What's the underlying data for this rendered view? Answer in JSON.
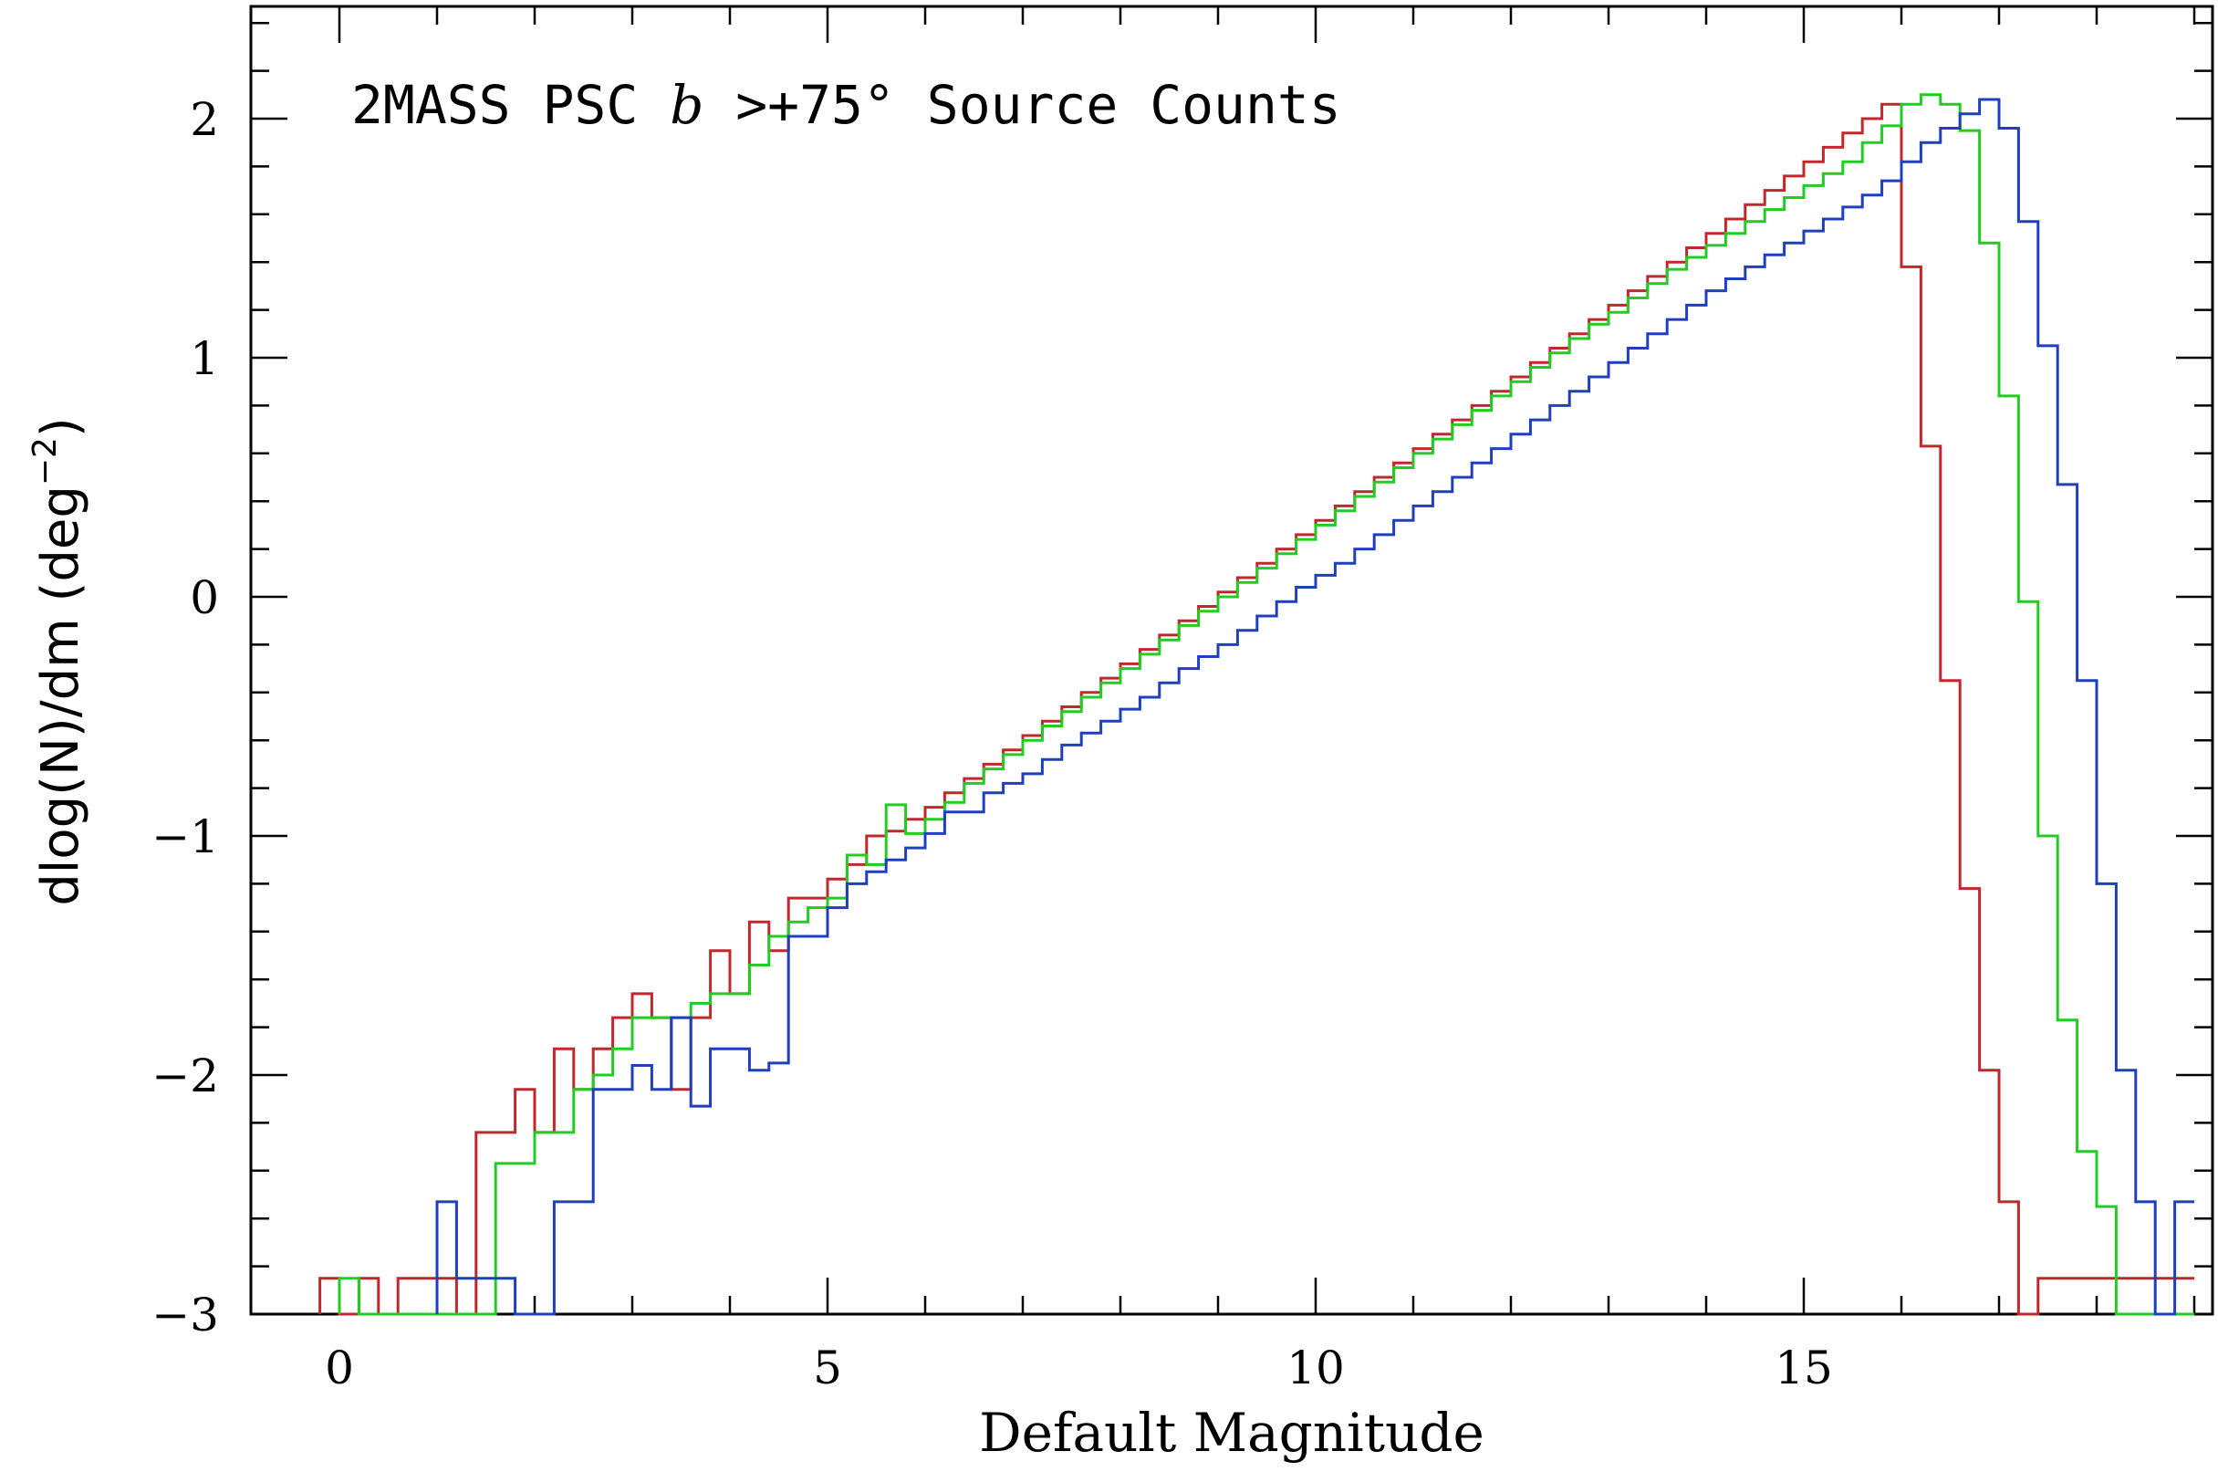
{
  "chart_data": {
    "type": "histogram-step",
    "title": {
      "prefix": "2MASS PSC ",
      "var": "b",
      "rest": " >+75° Source Counts"
    },
    "xlabel": "Default Magnitude",
    "ylabel": {
      "main": "dlog(N)/dm (deg",
      "sup": "−2",
      "close": ")"
    },
    "xlim": [
      -1.0,
      19.0
    ],
    "ylim": [
      -3.0,
      2.5
    ],
    "x_ticks": [
      0,
      5,
      10,
      15
    ],
    "x_tick_labels": [
      "0",
      "5",
      "10",
      "15"
    ],
    "y_ticks": [
      -3,
      -2,
      -1,
      0,
      1,
      2
    ],
    "y_tick_labels": [
      "−3",
      "−2",
      "−1",
      "0",
      "1",
      "2"
    ],
    "series": [
      {
        "name": "red",
        "color": "#c0282d",
        "points": [
          [
            -0.2,
            -2.85
          ],
          [
            0.0,
            -3.0
          ],
          [
            0.2,
            -2.85
          ],
          [
            0.4,
            -3.0
          ],
          [
            0.6,
            -2.85
          ],
          [
            0.8,
            -2.85
          ],
          [
            1.0,
            -2.85
          ],
          [
            1.2,
            -3.0
          ],
          [
            1.4,
            -2.24
          ],
          [
            1.6,
            -2.24
          ],
          [
            1.8,
            -2.06
          ],
          [
            2.0,
            -2.24
          ],
          [
            2.2,
            -1.89
          ],
          [
            2.4,
            -2.06
          ],
          [
            2.6,
            -1.89
          ],
          [
            2.8,
            -1.76
          ],
          [
            3.0,
            -1.66
          ],
          [
            3.2,
            -1.76
          ],
          [
            3.4,
            -2.06
          ],
          [
            3.6,
            -1.76
          ],
          [
            3.8,
            -1.48
          ],
          [
            4.0,
            -1.66
          ],
          [
            4.2,
            -1.36
          ],
          [
            4.4,
            -1.48
          ],
          [
            4.6,
            -1.26
          ],
          [
            4.8,
            -1.26
          ],
          [
            5.0,
            -1.18
          ],
          [
            5.2,
            -1.12
          ],
          [
            5.4,
            -1.0
          ],
          [
            5.6,
            -0.98
          ],
          [
            5.8,
            -0.93
          ],
          [
            6.0,
            -0.88
          ],
          [
            6.2,
            -0.82
          ],
          [
            6.4,
            -0.76
          ],
          [
            6.6,
            -0.7
          ],
          [
            6.8,
            -0.64
          ],
          [
            7.0,
            -0.58
          ],
          [
            7.2,
            -0.52
          ],
          [
            7.4,
            -0.46
          ],
          [
            7.6,
            -0.4
          ],
          [
            7.8,
            -0.34
          ],
          [
            8.0,
            -0.28
          ],
          [
            8.2,
            -0.22
          ],
          [
            8.4,
            -0.16
          ],
          [
            8.6,
            -0.1
          ],
          [
            8.8,
            -0.04
          ],
          [
            9.0,
            0.02
          ],
          [
            9.2,
            0.08
          ],
          [
            9.4,
            0.14
          ],
          [
            9.6,
            0.2
          ],
          [
            9.8,
            0.26
          ],
          [
            10.0,
            0.32
          ],
          [
            10.2,
            0.38
          ],
          [
            10.4,
            0.44
          ],
          [
            10.6,
            0.5
          ],
          [
            10.8,
            0.56
          ],
          [
            11.0,
            0.62
          ],
          [
            11.2,
            0.68
          ],
          [
            11.4,
            0.74
          ],
          [
            11.6,
            0.8
          ],
          [
            11.8,
            0.86
          ],
          [
            12.0,
            0.92
          ],
          [
            12.2,
            0.98
          ],
          [
            12.4,
            1.04
          ],
          [
            12.6,
            1.1
          ],
          [
            12.8,
            1.16
          ],
          [
            13.0,
            1.22
          ],
          [
            13.2,
            1.28
          ],
          [
            13.4,
            1.34
          ],
          [
            13.6,
            1.4
          ],
          [
            13.8,
            1.46
          ],
          [
            14.0,
            1.52
          ],
          [
            14.2,
            1.58
          ],
          [
            14.4,
            1.64
          ],
          [
            14.6,
            1.7
          ],
          [
            14.8,
            1.76
          ],
          [
            15.0,
            1.82
          ],
          [
            15.2,
            1.88
          ],
          [
            15.4,
            1.94
          ],
          [
            15.6,
            2.0
          ],
          [
            15.8,
            2.06
          ],
          [
            16.0,
            1.38
          ],
          [
            16.2,
            0.63
          ],
          [
            16.4,
            -0.35
          ],
          [
            16.6,
            -1.22
          ],
          [
            16.8,
            -1.98
          ],
          [
            17.0,
            -2.53
          ],
          [
            17.2,
            -3.0
          ],
          [
            17.4,
            -2.85
          ],
          [
            17.6,
            -2.85
          ],
          [
            17.8,
            -2.85
          ],
          [
            18.0,
            -2.85
          ],
          [
            18.2,
            -2.85
          ],
          [
            18.4,
            -2.85
          ],
          [
            18.6,
            -2.85
          ],
          [
            18.8,
            -2.85
          ]
        ]
      },
      {
        "name": "green",
        "color": "#22cc22",
        "points": [
          [
            0.0,
            -2.85
          ],
          [
            0.2,
            -3.0
          ],
          [
            0.4,
            -3.0
          ],
          [
            0.6,
            -3.0
          ],
          [
            0.8,
            -3.0
          ],
          [
            1.0,
            -3.0
          ],
          [
            1.2,
            -3.0
          ],
          [
            1.4,
            -3.0
          ],
          [
            1.6,
            -2.37
          ],
          [
            1.8,
            -2.37
          ],
          [
            2.0,
            -2.24
          ],
          [
            2.2,
            -2.24
          ],
          [
            2.4,
            -2.06
          ],
          [
            2.6,
            -2.0
          ],
          [
            2.8,
            -1.89
          ],
          [
            3.0,
            -1.76
          ],
          [
            3.2,
            -1.76
          ],
          [
            3.4,
            -1.76
          ],
          [
            3.6,
            -1.7
          ],
          [
            3.8,
            -1.66
          ],
          [
            4.0,
            -1.66
          ],
          [
            4.2,
            -1.54
          ],
          [
            4.4,
            -1.42
          ],
          [
            4.6,
            -1.36
          ],
          [
            4.8,
            -1.3
          ],
          [
            5.0,
            -1.26
          ],
          [
            5.2,
            -1.08
          ],
          [
            5.4,
            -1.12
          ],
          [
            5.6,
            -0.87
          ],
          [
            5.8,
            -0.99
          ],
          [
            6.0,
            -0.93
          ],
          [
            6.2,
            -0.86
          ],
          [
            6.4,
            -0.78
          ],
          [
            6.6,
            -0.72
          ],
          [
            6.8,
            -0.66
          ],
          [
            7.0,
            -0.6
          ],
          [
            7.2,
            -0.54
          ],
          [
            7.4,
            -0.48
          ],
          [
            7.6,
            -0.42
          ],
          [
            7.8,
            -0.36
          ],
          [
            8.0,
            -0.3
          ],
          [
            8.2,
            -0.24
          ],
          [
            8.4,
            -0.18
          ],
          [
            8.6,
            -0.12
          ],
          [
            8.8,
            -0.06
          ],
          [
            9.0,
            0.0
          ],
          [
            9.2,
            0.06
          ],
          [
            9.4,
            0.12
          ],
          [
            9.6,
            0.18
          ],
          [
            9.8,
            0.24
          ],
          [
            10.0,
            0.3
          ],
          [
            10.2,
            0.36
          ],
          [
            10.4,
            0.42
          ],
          [
            10.6,
            0.48
          ],
          [
            10.8,
            0.54
          ],
          [
            11.0,
            0.6
          ],
          [
            11.2,
            0.66
          ],
          [
            11.4,
            0.72
          ],
          [
            11.6,
            0.78
          ],
          [
            11.8,
            0.84
          ],
          [
            12.0,
            0.9
          ],
          [
            12.2,
            0.96
          ],
          [
            12.4,
            1.02
          ],
          [
            12.6,
            1.08
          ],
          [
            12.8,
            1.14
          ],
          [
            13.0,
            1.19
          ],
          [
            13.2,
            1.25
          ],
          [
            13.4,
            1.31
          ],
          [
            13.6,
            1.37
          ],
          [
            13.8,
            1.42
          ],
          [
            14.0,
            1.47
          ],
          [
            14.2,
            1.52
          ],
          [
            14.4,
            1.57
          ],
          [
            14.6,
            1.62
          ],
          [
            14.8,
            1.67
          ],
          [
            15.0,
            1.72
          ],
          [
            15.2,
            1.77
          ],
          [
            15.4,
            1.82
          ],
          [
            15.6,
            1.9
          ],
          [
            15.8,
            1.97
          ],
          [
            16.0,
            2.06
          ],
          [
            16.2,
            2.1
          ],
          [
            16.4,
            2.06
          ],
          [
            16.6,
            1.95
          ],
          [
            16.8,
            1.48
          ],
          [
            17.0,
            0.84
          ],
          [
            17.2,
            -0.02
          ],
          [
            17.4,
            -1.0
          ],
          [
            17.6,
            -1.77
          ],
          [
            17.8,
            -2.32
          ],
          [
            18.0,
            -2.55
          ],
          [
            18.2,
            -3.0
          ],
          [
            18.4,
            -3.0
          ],
          [
            18.6,
            -3.0
          ],
          [
            18.8,
            -3.0
          ]
        ]
      },
      {
        "name": "blue",
        "color": "#1f3fbf",
        "points": [
          [
            1.0,
            -2.53
          ],
          [
            1.2,
            -2.85
          ],
          [
            1.4,
            -2.85
          ],
          [
            1.6,
            -2.85
          ],
          [
            1.8,
            -3.0
          ],
          [
            2.0,
            -3.0
          ],
          [
            2.2,
            -2.53
          ],
          [
            2.4,
            -2.53
          ],
          [
            2.6,
            -2.06
          ],
          [
            2.8,
            -2.06
          ],
          [
            3.0,
            -1.96
          ],
          [
            3.2,
            -2.06
          ],
          [
            3.4,
            -1.76
          ],
          [
            3.6,
            -2.13
          ],
          [
            3.8,
            -1.89
          ],
          [
            4.0,
            -1.89
          ],
          [
            4.2,
            -1.98
          ],
          [
            4.4,
            -1.95
          ],
          [
            4.6,
            -1.42
          ],
          [
            4.8,
            -1.42
          ],
          [
            5.0,
            -1.3
          ],
          [
            5.2,
            -1.2
          ],
          [
            5.4,
            -1.15
          ],
          [
            5.6,
            -1.1
          ],
          [
            5.8,
            -1.05
          ],
          [
            6.0,
            -0.99
          ],
          [
            6.2,
            -0.9
          ],
          [
            6.4,
            -0.9
          ],
          [
            6.6,
            -0.82
          ],
          [
            6.8,
            -0.78
          ],
          [
            7.0,
            -0.74
          ],
          [
            7.2,
            -0.68
          ],
          [
            7.4,
            -0.62
          ],
          [
            7.6,
            -0.57
          ],
          [
            7.8,
            -0.52
          ],
          [
            8.0,
            -0.47
          ],
          [
            8.2,
            -0.42
          ],
          [
            8.4,
            -0.36
          ],
          [
            8.6,
            -0.3
          ],
          [
            8.8,
            -0.25
          ],
          [
            9.0,
            -0.2
          ],
          [
            9.2,
            -0.14
          ],
          [
            9.4,
            -0.08
          ],
          [
            9.6,
            -0.02
          ],
          [
            9.8,
            0.04
          ],
          [
            10.0,
            0.09
          ],
          [
            10.2,
            0.14
          ],
          [
            10.4,
            0.2
          ],
          [
            10.6,
            0.26
          ],
          [
            10.8,
            0.32
          ],
          [
            11.0,
            0.38
          ],
          [
            11.2,
            0.44
          ],
          [
            11.4,
            0.5
          ],
          [
            11.6,
            0.56
          ],
          [
            11.8,
            0.62
          ],
          [
            12.0,
            0.68
          ],
          [
            12.2,
            0.74
          ],
          [
            12.4,
            0.8
          ],
          [
            12.6,
            0.86
          ],
          [
            12.8,
            0.92
          ],
          [
            13.0,
            0.98
          ],
          [
            13.2,
            1.04
          ],
          [
            13.4,
            1.1
          ],
          [
            13.6,
            1.16
          ],
          [
            13.8,
            1.22
          ],
          [
            14.0,
            1.28
          ],
          [
            14.2,
            1.33
          ],
          [
            14.4,
            1.38
          ],
          [
            14.6,
            1.43
          ],
          [
            14.8,
            1.48
          ],
          [
            15.0,
            1.53
          ],
          [
            15.2,
            1.58
          ],
          [
            15.4,
            1.63
          ],
          [
            15.6,
            1.68
          ],
          [
            15.8,
            1.74
          ],
          [
            16.0,
            1.82
          ],
          [
            16.2,
            1.9
          ],
          [
            16.4,
            1.96
          ],
          [
            16.6,
            2.02
          ],
          [
            16.8,
            2.08
          ],
          [
            17.0,
            1.96
          ],
          [
            17.2,
            1.57
          ],
          [
            17.4,
            1.05
          ],
          [
            17.6,
            0.47
          ],
          [
            17.8,
            -0.35
          ],
          [
            18.0,
            -1.2
          ],
          [
            18.2,
            -1.98
          ],
          [
            18.4,
            -2.53
          ],
          [
            18.6,
            -3.0
          ],
          [
            18.8,
            -2.53
          ]
        ]
      }
    ]
  }
}
